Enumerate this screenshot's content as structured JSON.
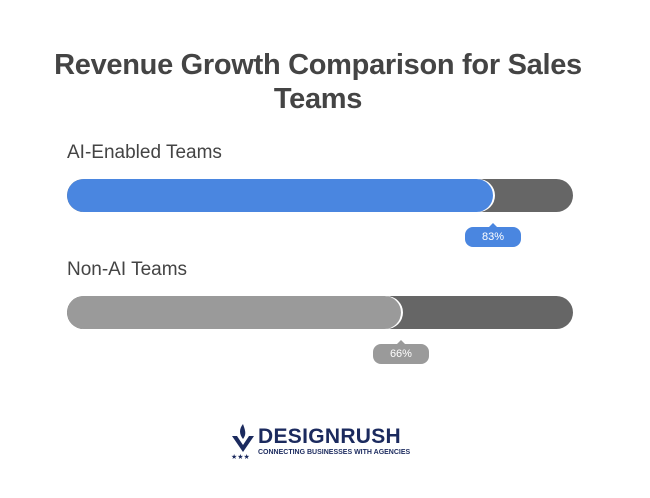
{
  "chart_data": {
    "type": "bar",
    "orientation": "horizontal",
    "title": "Revenue Growth Comparison for Sales Teams",
    "categories": [
      "AI-Enabled Teams",
      "Non-AI Teams"
    ],
    "values": [
      83,
      66
    ],
    "value_labels": [
      "83%",
      "66%"
    ],
    "xlim": [
      0,
      100
    ],
    "colors": {
      "AI-Enabled Teams": "#4a86e0",
      "Non-AI Teams": "#9a9a9a",
      "track": "#666666"
    }
  },
  "logo": {
    "name": "DESIGNRUSH",
    "tagline": "CONNECTING BUSINESSES WITH AGENCIES"
  }
}
